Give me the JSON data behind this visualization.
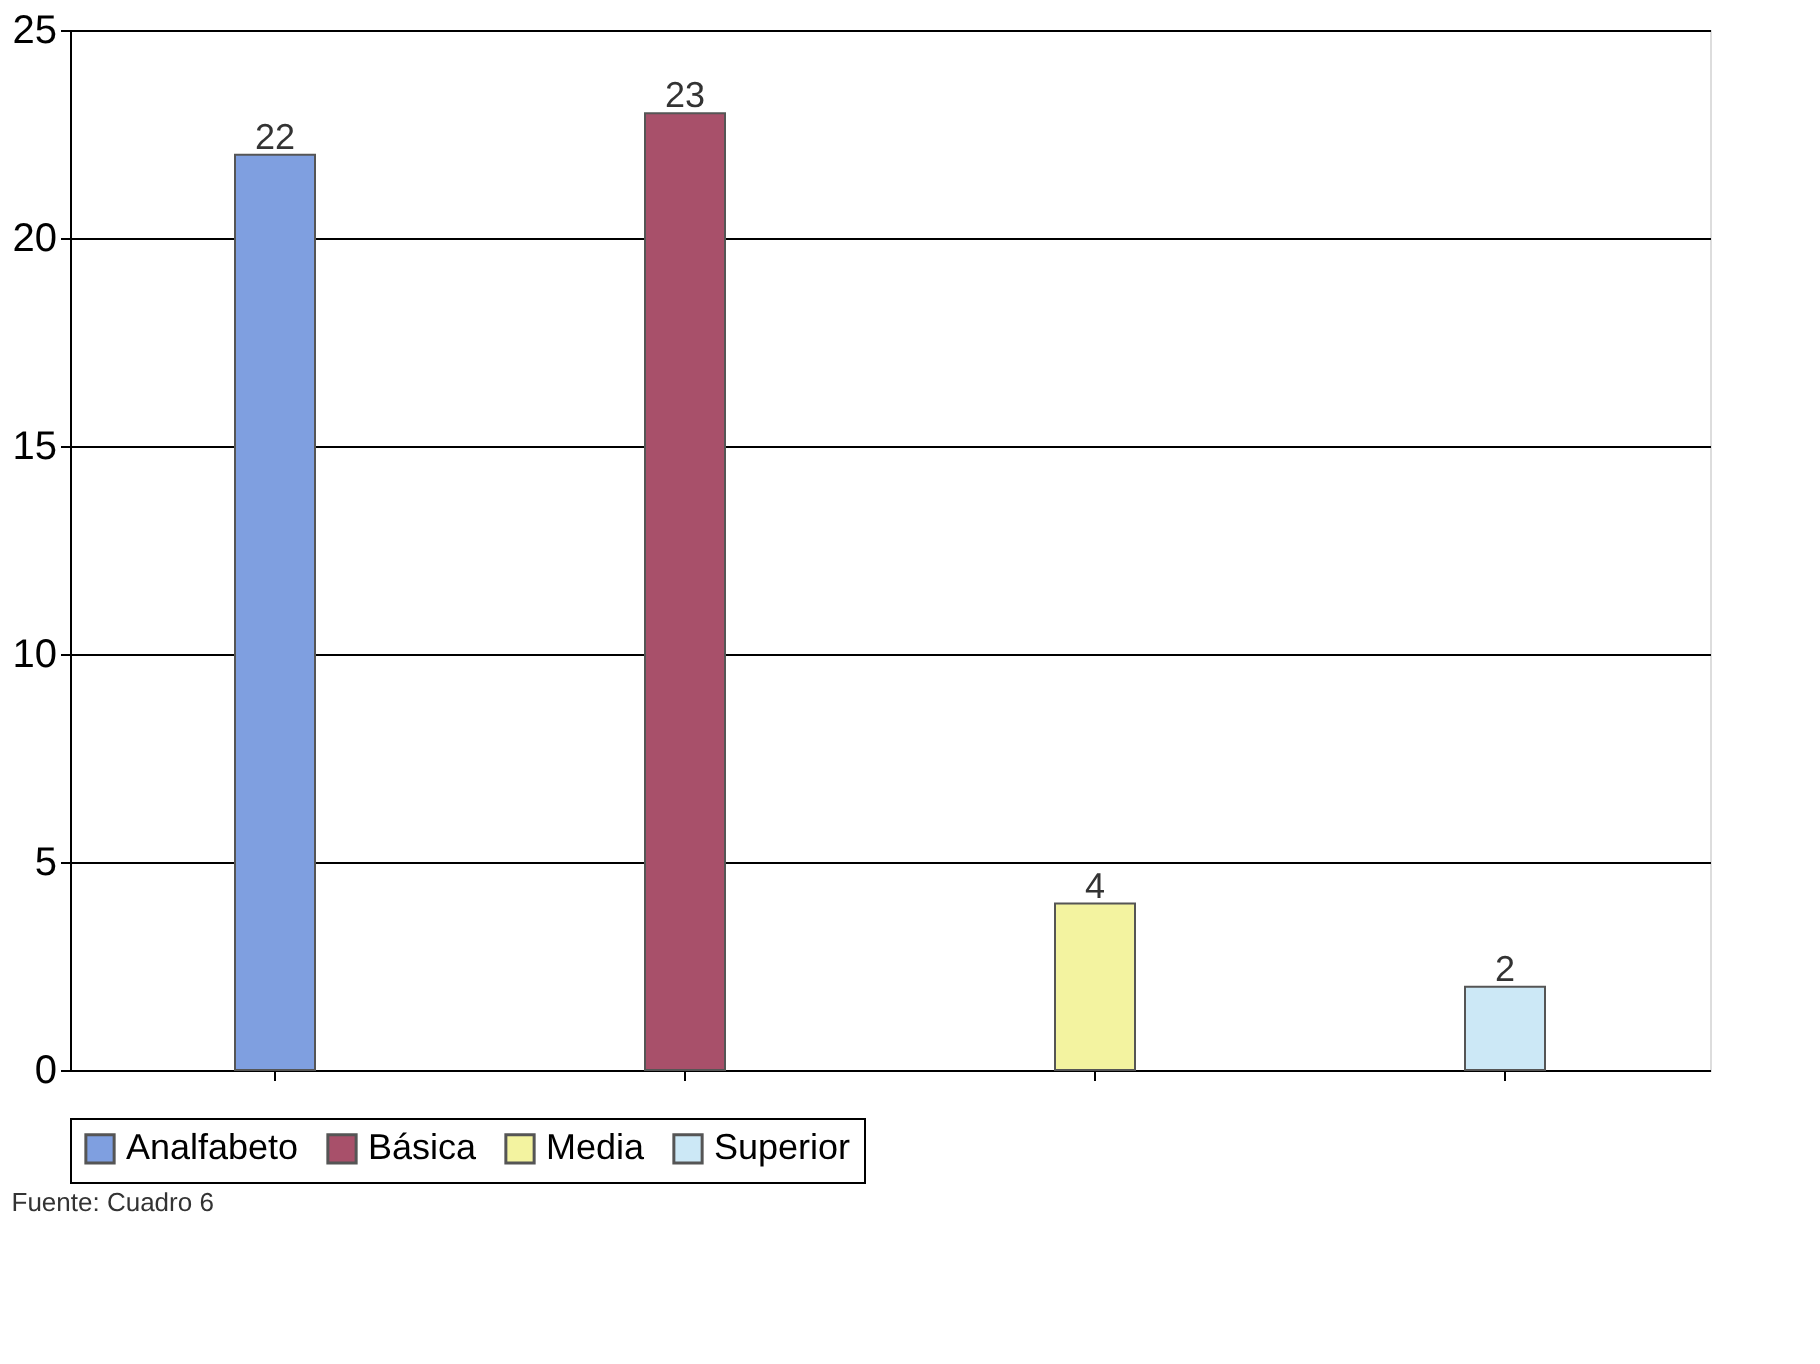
{
  "chart_data": {
    "type": "bar",
    "categories": [
      null,
      null,
      null,
      null
    ],
    "series": [
      {
        "name": "Analfabeto",
        "color": "#7f9fe0",
        "values": [
          22,
          null,
          null,
          null
        ]
      },
      {
        "name": "Básica",
        "color": "#a8506a",
        "values": [
          null,
          23,
          null,
          null
        ]
      },
      {
        "name": "Media",
        "color": "#f3f3a0",
        "values": [
          null,
          null,
          4,
          null
        ]
      },
      {
        "name": "Superior",
        "color": "#cce8f6",
        "values": [
          null,
          null,
          null,
          2
        ]
      }
    ],
    "ylim": [
      0,
      25
    ],
    "yticks": [
      0,
      5,
      10,
      15,
      20,
      25
    ],
    "grid": "y",
    "legend": "bottom",
    "tick_labels": "y",
    "data_labels": true,
    "annotations": [
      "Fuente: Cuadro 6"
    ]
  }
}
